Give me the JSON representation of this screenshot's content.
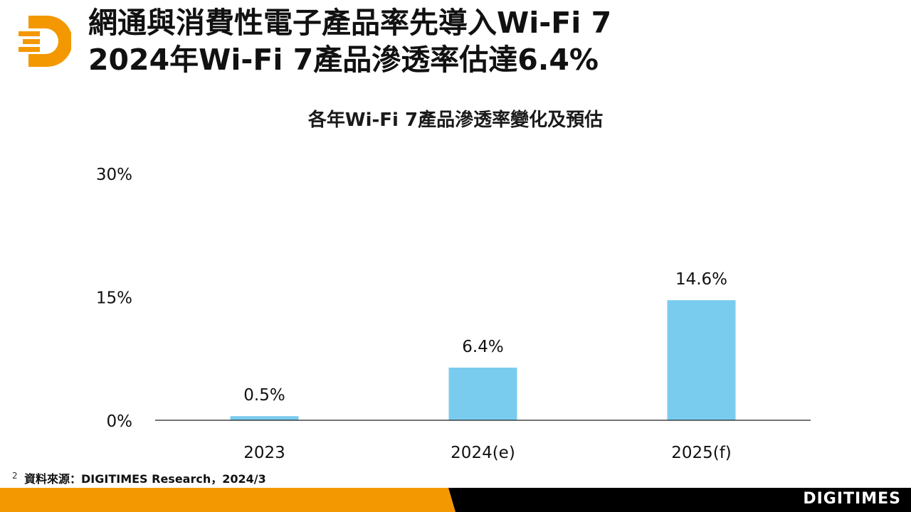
{
  "slide": {
    "title_line1": "網通與消費性電子產品率先導入Wi-Fi 7",
    "title_line2": "2024年Wi-Fi 7產品滲透率估達6.4%",
    "page_number": "2",
    "source": "資料來源：DIGITIMES Research，2024/3",
    "brand": "DIGITIMES"
  },
  "colors": {
    "accent_orange": "#F39800",
    "bar_blue": "#7ACCEF",
    "footer_dark": "#000000"
  },
  "chart_data": {
    "type": "bar",
    "title": "各年Wi-Fi 7產品滲透率變化及預估",
    "categories": [
      "2023",
      "2024(e)",
      "2025(f)"
    ],
    "values": [
      0.5,
      6.4,
      14.6
    ],
    "value_labels": [
      "0.5%",
      "6.4%",
      "14.6%"
    ],
    "ylim": [
      0,
      30
    ],
    "yticks": [
      0,
      15,
      30
    ],
    "ytick_labels": [
      "0%",
      "15%",
      "30%"
    ],
    "xlabel": "",
    "ylabel": "",
    "grid": false,
    "legend": "none"
  }
}
